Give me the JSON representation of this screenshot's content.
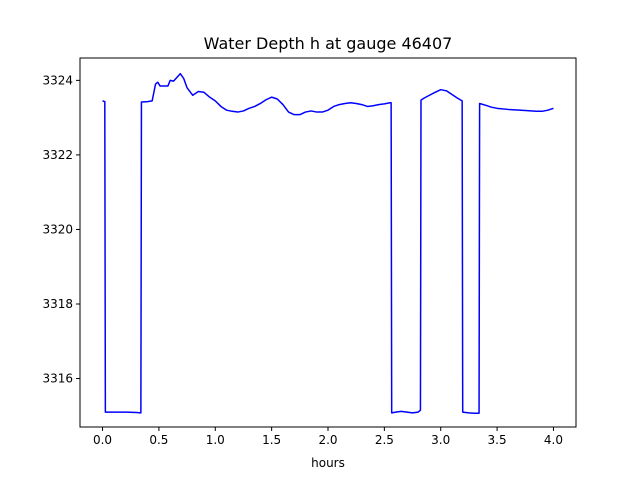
{
  "chart_data": {
    "type": "line",
    "title": "Water Depth h at gauge 46407",
    "xlabel": "hours",
    "ylabel": "",
    "xlim": [
      -0.2,
      4.2
    ],
    "ylim": [
      3314.7,
      3324.6
    ],
    "xticks": [
      0.0,
      0.5,
      1.0,
      1.5,
      2.0,
      2.5,
      3.0,
      3.5,
      4.0
    ],
    "xtick_labels": [
      "0.0",
      "0.5",
      "1.0",
      "1.5",
      "2.0",
      "2.5",
      "3.0",
      "3.5",
      "4.0"
    ],
    "yticks": [
      3316,
      3318,
      3320,
      3322,
      3324
    ],
    "ytick_labels": [
      "3316",
      "3318",
      "3320",
      "3322",
      "3324"
    ],
    "grid": false,
    "series": [
      {
        "color": "#0000ff",
        "points": [
          [
            0.0,
            3323.45
          ],
          [
            0.02,
            3323.43
          ],
          [
            0.025,
            3315.1
          ],
          [
            0.1,
            3315.1
          ],
          [
            0.2,
            3315.1
          ],
          [
            0.3,
            3315.09
          ],
          [
            0.34,
            3315.08
          ],
          [
            0.345,
            3323.42
          ],
          [
            0.4,
            3323.43
          ],
          [
            0.44,
            3323.45
          ],
          [
            0.47,
            3323.9
          ],
          [
            0.49,
            3323.95
          ],
          [
            0.51,
            3323.85
          ],
          [
            0.55,
            3323.85
          ],
          [
            0.58,
            3323.85
          ],
          [
            0.6,
            3324.0
          ],
          [
            0.63,
            3323.98
          ],
          [
            0.66,
            3324.08
          ],
          [
            0.69,
            3324.18
          ],
          [
            0.72,
            3324.05
          ],
          [
            0.75,
            3323.8
          ],
          [
            0.8,
            3323.6
          ],
          [
            0.85,
            3323.7
          ],
          [
            0.9,
            3323.68
          ],
          [
            0.95,
            3323.55
          ],
          [
            1.0,
            3323.45
          ],
          [
            1.05,
            3323.3
          ],
          [
            1.1,
            3323.2
          ],
          [
            1.15,
            3323.17
          ],
          [
            1.2,
            3323.15
          ],
          [
            1.25,
            3323.18
          ],
          [
            1.3,
            3323.25
          ],
          [
            1.35,
            3323.3
          ],
          [
            1.4,
            3323.38
          ],
          [
            1.45,
            3323.48
          ],
          [
            1.5,
            3323.55
          ],
          [
            1.55,
            3323.5
          ],
          [
            1.6,
            3323.35
          ],
          [
            1.65,
            3323.15
          ],
          [
            1.7,
            3323.08
          ],
          [
            1.75,
            3323.08
          ],
          [
            1.8,
            3323.15
          ],
          [
            1.85,
            3323.18
          ],
          [
            1.9,
            3323.15
          ],
          [
            1.95,
            3323.15
          ],
          [
            2.0,
            3323.2
          ],
          [
            2.05,
            3323.3
          ],
          [
            2.1,
            3323.35
          ],
          [
            2.15,
            3323.38
          ],
          [
            2.2,
            3323.4
          ],
          [
            2.25,
            3323.38
          ],
          [
            2.3,
            3323.35
          ],
          [
            2.35,
            3323.3
          ],
          [
            2.4,
            3323.32
          ],
          [
            2.45,
            3323.35
          ],
          [
            2.5,
            3323.37
          ],
          [
            2.55,
            3323.4
          ],
          [
            2.56,
            3323.4
          ],
          [
            2.565,
            3315.08
          ],
          [
            2.6,
            3315.1
          ],
          [
            2.65,
            3315.12
          ],
          [
            2.7,
            3315.1
          ],
          [
            2.75,
            3315.08
          ],
          [
            2.8,
            3315.1
          ],
          [
            2.82,
            3315.15
          ],
          [
            2.825,
            3323.47
          ],
          [
            2.85,
            3323.52
          ],
          [
            2.9,
            3323.6
          ],
          [
            2.95,
            3323.68
          ],
          [
            3.0,
            3323.75
          ],
          [
            3.05,
            3323.72
          ],
          [
            3.1,
            3323.62
          ],
          [
            3.15,
            3323.52
          ],
          [
            3.19,
            3323.45
          ],
          [
            3.195,
            3315.1
          ],
          [
            3.25,
            3315.08
          ],
          [
            3.3,
            3315.07
          ],
          [
            3.34,
            3315.07
          ],
          [
            3.345,
            3323.38
          ],
          [
            3.4,
            3323.33
          ],
          [
            3.45,
            3323.28
          ],
          [
            3.5,
            3323.25
          ],
          [
            3.6,
            3323.22
          ],
          [
            3.7,
            3323.2
          ],
          [
            3.8,
            3323.18
          ],
          [
            3.85,
            3323.17
          ],
          [
            3.9,
            3323.17
          ],
          [
            3.95,
            3323.2
          ],
          [
            4.0,
            3323.25
          ]
        ]
      }
    ]
  }
}
